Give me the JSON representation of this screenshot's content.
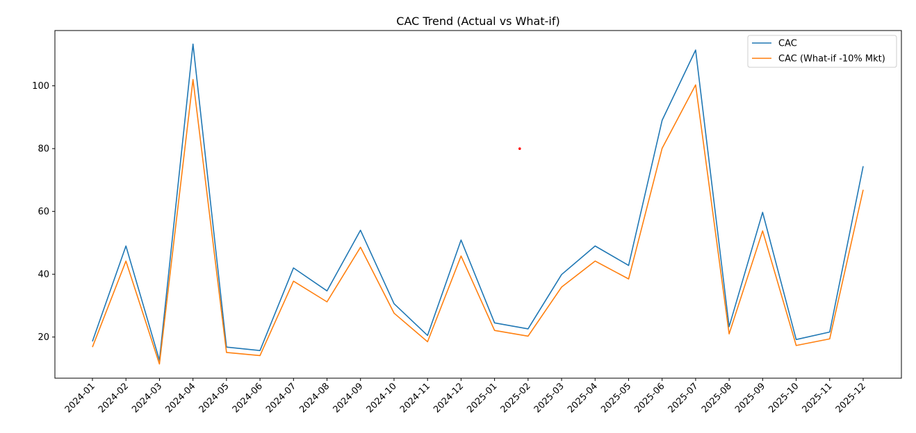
{
  "chart_data": {
    "type": "line",
    "title": "CAC Trend (Actual vs What-if)",
    "xlabel": "",
    "ylabel": "",
    "x": [
      "2024-01",
      "2024-02",
      "2024-03",
      "2024-04",
      "2024-05",
      "2024-06",
      "2024-07",
      "2024-08",
      "2024-09",
      "2024-10",
      "2024-11",
      "2024-12",
      "2025-01",
      "2025-02",
      "2025-03",
      "2025-04",
      "2025-05",
      "2025-06",
      "2025-07",
      "2025-08",
      "2025-09",
      "2025-10",
      "2025-11",
      "2025-12"
    ],
    "yticks": [
      20,
      40,
      60,
      80,
      100
    ],
    "ylim": [
      6.9,
      117.6
    ],
    "grid": false,
    "legend_position": "top-right",
    "series": [
      {
        "name": "CAC",
        "color": "#1f77b4",
        "values": [
          18.6,
          49.0,
          12.6,
          113.3,
          16.8,
          15.7,
          42.0,
          34.7,
          54.0,
          30.6,
          20.5,
          50.9,
          24.5,
          22.6,
          39.9,
          49.0,
          42.8,
          89.0,
          111.4,
          23.3,
          59.7,
          19.2,
          21.6,
          74.4
        ]
      },
      {
        "name": "CAC (What-if -10% Mkt)",
        "color": "#ff7f0e",
        "values": [
          16.8,
          44.2,
          11.4,
          102.0,
          15.1,
          14.1,
          37.8,
          31.2,
          48.6,
          27.6,
          18.5,
          45.8,
          22.1,
          20.3,
          35.9,
          44.2,
          38.5,
          80.1,
          100.3,
          21.0,
          53.8,
          17.3,
          19.4,
          66.9
        ]
      }
    ],
    "marker_point": {
      "x": 12.75,
      "y": 80,
      "color": "#ff0000"
    }
  }
}
